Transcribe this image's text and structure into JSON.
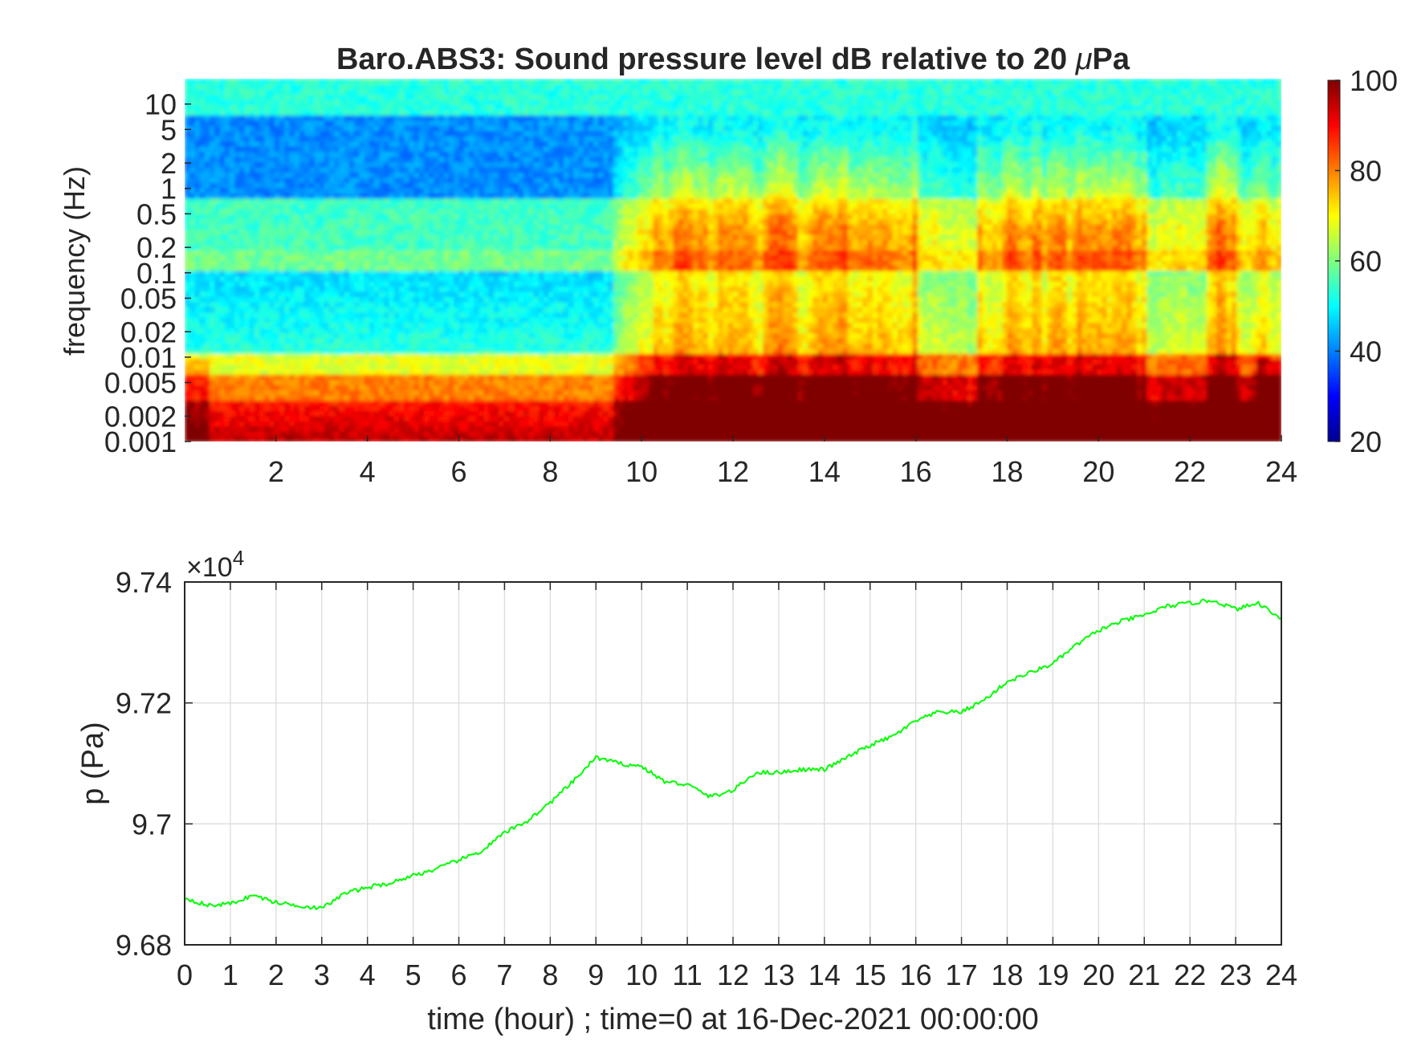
{
  "chart_data": [
    {
      "type": "heatmap",
      "title_main": "Baro.ABS3: Sound pressure level dB relative to 20 ",
      "title_mu": "μ",
      "title_end": "Pa",
      "ylabel": "frequency (Hz)",
      "y_scale": "log",
      "ylim": [
        0.001,
        20
      ],
      "xlim": [
        0,
        24
      ],
      "x_ticks": [
        "2",
        "4",
        "6",
        "8",
        "10",
        "12",
        "14",
        "16",
        "18",
        "20",
        "22",
        "24"
      ],
      "y_ticks": [
        "10",
        "5",
        "2",
        "1",
        "0.5",
        "0.2",
        "0.1",
        "0.05",
        "0.02",
        "0.01",
        "0.005",
        "0.002",
        "0.001"
      ],
      "colorbar": {
        "ticks": [
          "100",
          "80",
          "60",
          "40",
          "20"
        ],
        "range": [
          20,
          100
        ],
        "colormap": "jet"
      },
      "colormap_colors": [
        "#00008f",
        "#0000ff",
        "#00ffff",
        "#ffff00",
        "#ff0000",
        "#800000"
      ]
    },
    {
      "type": "line",
      "ylabel": "p (Pa)",
      "xlabel": "time (hour) ; time=0 at 16-Dec-2021 00:00:00",
      "exponent_base": "×10",
      "exponent_power": "4",
      "xlim": [
        0,
        24
      ],
      "ylim": [
        9.68,
        9.74
      ],
      "grid": true,
      "line_color": "#00ff00",
      "x_ticks": [
        "0",
        "1",
        "2",
        "3",
        "4",
        "5",
        "6",
        "7",
        "8",
        "9",
        "10",
        "11",
        "12",
        "13",
        "14",
        "15",
        "16",
        "17",
        "18",
        "19",
        "20",
        "21",
        "22",
        "23",
        "24"
      ],
      "y_ticks": [
        "9.74",
        "9.72",
        "9.7",
        "9.68"
      ],
      "series": [
        {
          "x": [
            0,
            0.5,
            1,
            1.5,
            2,
            2.5,
            3,
            3.5,
            4,
            4.5,
            5,
            5.5,
            6,
            6.5,
            7,
            7.5,
            8,
            8.5,
            9,
            9.5,
            10,
            10.5,
            11,
            11.5,
            12,
            12.5,
            13,
            13.5,
            14,
            14.5,
            15,
            15.5,
            16,
            16.5,
            17,
            17.5,
            18,
            18.5,
            19,
            19.5,
            20,
            20.5,
            21,
            21.5,
            22,
            22.5,
            23,
            23.5,
            24
          ],
          "y": [
            9.6878,
            9.6865,
            9.6868,
            9.6882,
            9.687,
            9.6865,
            9.686,
            9.6885,
            9.6895,
            9.6902,
            9.6915,
            9.6925,
            9.694,
            9.6955,
            9.6985,
            9.7005,
            9.7035,
            9.707,
            9.711,
            9.71,
            9.7095,
            9.707,
            9.7065,
            9.7045,
            9.7055,
            9.7085,
            9.7085,
            9.709,
            9.709,
            9.711,
            9.713,
            9.7145,
            9.717,
            9.7185,
            9.7185,
            9.7205,
            9.7235,
            9.725,
            9.7265,
            9.7295,
            9.732,
            9.7335,
            9.7345,
            9.736,
            9.7365,
            9.737,
            9.7355,
            9.7365,
            9.734
          ]
        }
      ]
    }
  ]
}
